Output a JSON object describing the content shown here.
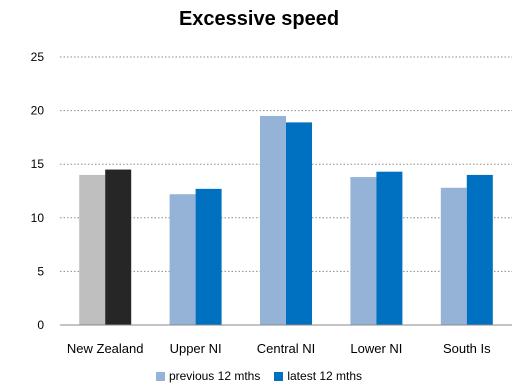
{
  "chart_data": {
    "type": "bar",
    "title": "Excessive speed",
    "xlabel": "",
    "ylabel": "",
    "categories": [
      "New Zealand",
      "Upper NI",
      "Central NI",
      "Lower NI",
      "South Is"
    ],
    "series": [
      {
        "name": "previous 12 mths",
        "values": [
          14.0,
          12.2,
          19.5,
          13.8,
          12.8
        ]
      },
      {
        "name": "latest 12 mths",
        "values": [
          14.5,
          12.7,
          18.9,
          14.3,
          14.0
        ]
      }
    ],
    "ylim": [
      0,
      25
    ],
    "yticks": [
      0,
      5,
      10,
      15,
      20,
      25
    ],
    "grid": true,
    "legend_position": "bottom",
    "colors": {
      "previous": "#95b3d7",
      "latest": "#0070c0",
      "nz_previous": "#bfbfbf",
      "nz_latest": "#262626",
      "grid": "#8c8c8c",
      "axis": "#888888"
    }
  }
}
